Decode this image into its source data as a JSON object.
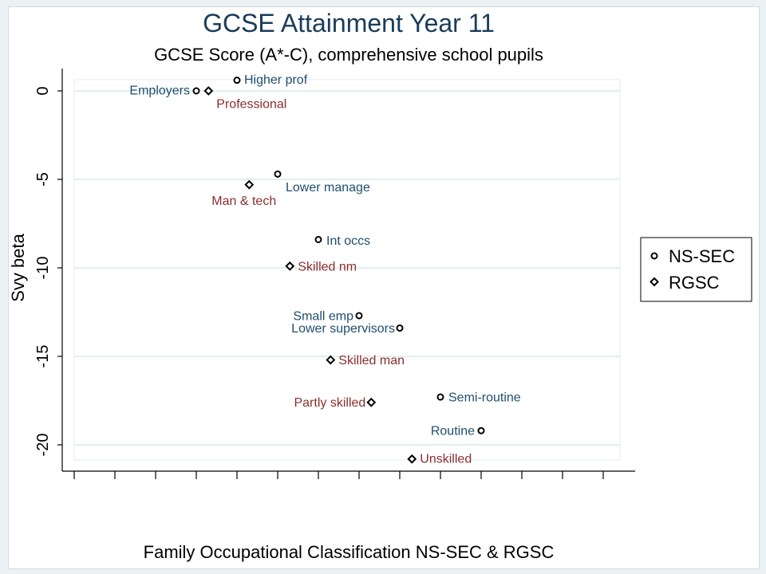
{
  "chart_data": {
    "type": "scatter",
    "title": "GCSE Attainment Year 11",
    "subtitle": "GCSE Score (A*-C), comprehensive school pupils",
    "xlabel": "Family Occupational Classification NS-SEC & RGSC",
    "ylabel": "Svy beta",
    "yticks": [
      0,
      -5,
      -10,
      -15,
      -20
    ],
    "ylim": [
      -21,
      1
    ],
    "x_tick_count": 14,
    "grid": true,
    "legend_position": "right",
    "series": [
      {
        "name": "NS-SEC",
        "marker": "circle",
        "color": "#1f4e6e",
        "points": [
          {
            "x": 3.0,
            "y": 0.0,
            "label": "Employers"
          },
          {
            "x": 4.0,
            "y": 0.6,
            "label": "Higher prof"
          },
          {
            "x": 5.0,
            "y": -4.7,
            "label": "Lower manage"
          },
          {
            "x": 6.0,
            "y": -8.4,
            "label": "Int occs"
          },
          {
            "x": 7.0,
            "y": -12.7,
            "label": "Small emp"
          },
          {
            "x": 8.0,
            "y": -13.4,
            "label": "Lower supervisors"
          },
          {
            "x": 9.0,
            "y": -17.3,
            "label": "Semi-routine"
          },
          {
            "x": 10.0,
            "y": -19.2,
            "label": "Routine"
          }
        ]
      },
      {
        "name": "RGSC",
        "marker": "diamond",
        "color": "#8c2d2d",
        "points": [
          {
            "x": 3.3,
            "y": 0.0,
            "label": "Professional"
          },
          {
            "x": 4.3,
            "y": -5.3,
            "label": "Man & tech"
          },
          {
            "x": 5.3,
            "y": -9.9,
            "label": "Skilled nm"
          },
          {
            "x": 6.3,
            "y": -15.2,
            "label": "Skilled man"
          },
          {
            "x": 7.3,
            "y": -17.6,
            "label": "Partly skilled"
          },
          {
            "x": 8.3,
            "y": -20.8,
            "label": "Unskilled"
          }
        ]
      }
    ]
  }
}
